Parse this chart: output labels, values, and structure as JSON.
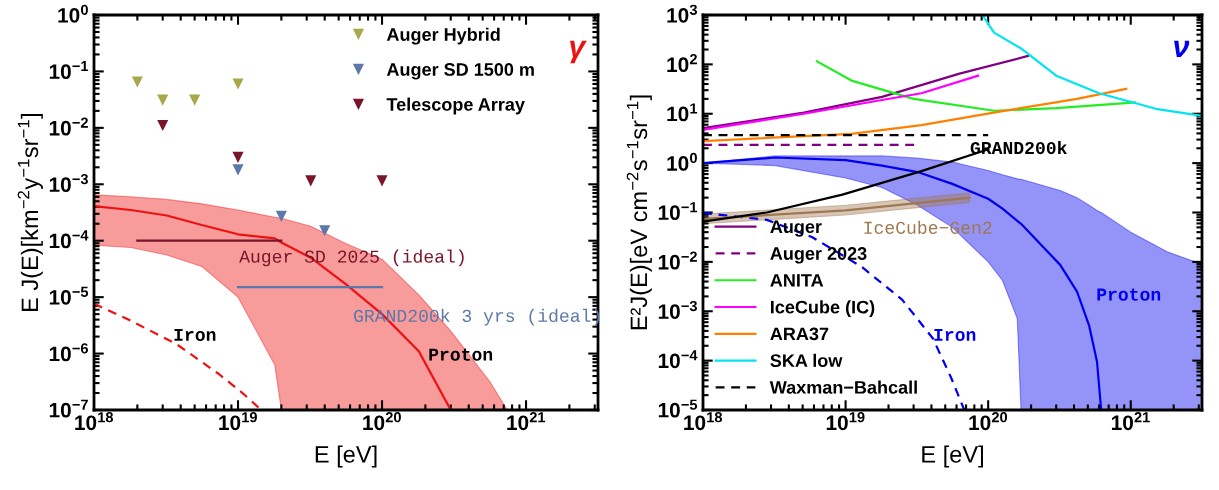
{
  "chart_data": [
    {
      "type": "line",
      "xlabel": "E [eV]",
      "ylabel": "E J(E)[km$^{−2}$y$^{−1}$sr$^{−1}$]",
      "log": "xy",
      "legend": "top right",
      "grid": false,
      "xlim": [
        1e+18,
        3.16e+21
      ],
      "xticks": [
        {
          "value": 1e+18,
          "label": "10$^{18}$"
        },
        {
          "value": 1e+19,
          "label": "10$^{19}$"
        },
        {
          "value": 1e+20,
          "label": "10$^{20}$"
        },
        {
          "value": 1e+21,
          "label": "10$^{21}$"
        }
      ],
      "ylim": [
        1e-07,
        1
      ],
      "yticks": [
        {
          "value": 1e-07,
          "label": "10$^{−7}$"
        },
        {
          "value": 1e-06,
          "label": "10$^{−6}$"
        },
        {
          "value": 1e-05,
          "label": "10$^{−5}$"
        },
        {
          "value": 0.0001,
          "label": "10$^{−4}$"
        },
        {
          "value": 0.001,
          "label": "10$^{−3}$"
        },
        {
          "value": 0.01,
          "label": "10$^{−2}$"
        },
        {
          "value": 0.1,
          "label": "10$^{−1}$"
        },
        {
          "value": 1,
          "label": "10$^{0}$"
        }
      ],
      "series": [
        {
          "name": "Proton",
          "color": "#ee1111",
          "x": [
            1e+18,
            1.8e+18,
            3.2e+18,
            5.6e+18,
            1e+19,
            1.8e+19,
            2e+19,
            3.2e+19,
            5.6e+19,
            1e+20,
            1.8e+20,
            3e+20,
            5.6e+20,
            7.4e+20
          ],
          "values": [
            0.00041,
            0.00035,
            0.00028,
            0.00019,
            0.00013,
            0.00011,
            9.3e-05,
            5e-05,
            1.7e-05,
            5e-06,
            1.1e-06,
            1e-07,
            null,
            null
          ],
          "upper": [
            0.00065,
            0.0006,
            0.00054,
            0.00045,
            0.00035,
            0.00026,
            0.00025,
            0.00018,
            8.9e-05,
            4.7e-05,
            1.1e-05,
            2.5e-06,
            3.2e-07,
            1e-07
          ],
          "lower": [
            8.3e-05,
            7.6e-05,
            5.6e-05,
            3.5e-05,
            1e-05,
            6.3e-07,
            1e-07,
            1e-07,
            1e-07,
            1e-07,
            1e-07,
            1e-07,
            1e-07,
            1e-07
          ]
        },
        {
          "name": "Iron",
          "color": "#ee1111",
          "line_style": "dashed",
          "x": [
            1e+18,
            1.7e+18,
            3.7e+18,
            7.4e+18,
            1.1e+19,
            1.45e+19
          ],
          "values": [
            7.6e-06,
            4.1e-06,
            1.5e-06,
            4.3e-07,
            1.9e-07,
            1e-07
          ]
        },
        {
          "name": "Auger SD 2025 (ideal)",
          "color": "#7a1428",
          "x": [
            2e+18,
            2e+19
          ],
          "values": [
            0.0001,
            0.0001
          ]
        },
        {
          "name": "GRAND200k 3 yrs (ideal)",
          "color": "#5a78a8",
          "x": [
            1e+19,
            1e+20
          ],
          "values": [
            1.5e-05,
            1.5e-05
          ]
        },
        {
          "type": "scatter",
          "name": "Auger Hybrid",
          "color": "#a8a84a",
          "x": [
            2e+18,
            3e+18,
            5e+18,
            1e+19
          ],
          "values": [
            0.065,
            0.031,
            0.031,
            0.06
          ]
        },
        {
          "type": "scatter",
          "name": "Auger SD 1500 m",
          "color": "#5a78a8",
          "x": [
            1e+19,
            2e+19,
            4e+19
          ],
          "values": [
            0.0018,
            0.00027,
            0.00015
          ]
        },
        {
          "type": "scatter",
          "name": "Telescope Array",
          "color": "#7a1428",
          "x": [
            3e+18,
            1e+19,
            3.2e+19,
            1e+20
          ],
          "values": [
            0.011,
            0.003,
            0.00115,
            0.00115
          ]
        }
      ],
      "annotations": [
        "γ"
      ]
    },
    {
      "type": "line",
      "xlabel": "E [eV]",
      "ylabel": "E²J(E)[eV cm$^{−2}$s$^{−1}$sr$^{−1}$]",
      "log": "xy",
      "legend": "bottom left",
      "grid": false,
      "xlim": [
        1e+18,
        3.16e+21
      ],
      "xticks": [
        {
          "value": 1e+18,
          "label": "10$^{18}$"
        },
        {
          "value": 1e+19,
          "label": "10$^{19}$"
        },
        {
          "value": 1e+20,
          "label": "10$^{20}$"
        },
        {
          "value": 1e+21,
          "label": "10$^{21}$"
        }
      ],
      "ylim": [
        1e-05,
        1000
      ],
      "yticks": [
        {
          "value": 1e-05,
          "label": "10$^{−5}$"
        },
        {
          "value": 0.0001,
          "label": "10$^{−4}$"
        },
        {
          "value": 0.001,
          "label": "10$^{−3}$"
        },
        {
          "value": 0.01,
          "label": "10$^{−2}$"
        },
        {
          "value": 0.1,
          "label": "10$^{−1}$"
        },
        {
          "value": 1,
          "label": "10$^{0}$"
        },
        {
          "value": 10,
          "label": "10$^{1}$"
        },
        {
          "value": 100,
          "label": "10$^{2}$"
        },
        {
          "value": 1000,
          "label": "10$^{3}$"
        }
      ],
      "series": [
        {
          "name": "Proton",
          "color": "#0000ee",
          "x": [
            1e+18,
            3.2e+18,
            1e+19,
            1.8e+19,
            3.2e+19,
            5.6e+19,
            1e+20,
            1.26e+20,
            1.6e+20,
            1.7e+20,
            3.2e+20,
            4.2e+20,
            5.1e+20,
            5.8e+20,
            6.2e+20,
            1e+21,
            1.8e+21,
            3.16e+21
          ],
          "values": [
            1,
            1.3,
            1.15,
            0.89,
            0.66,
            0.38,
            0.19,
            0.12,
            0.068,
            0.059,
            0.0087,
            0.0025,
            0.00052,
            9.5e-05,
            1e-05,
            null,
            null,
            null
          ],
          "upper": [
            1,
            1.4,
            1.4,
            1.4,
            1.26,
            1.05,
            0.71,
            0.58,
            0.48,
            0.47,
            0.28,
            0.2,
            0.14,
            0.11,
            0.1,
            0.04,
            0.016,
            0.0089
          ],
          "lower": [
            1,
            0.89,
            0.5,
            0.32,
            0.14,
            0.05,
            0.01,
            0.0042,
            0.00071,
            1e-05,
            1e-05,
            1e-05,
            1e-05,
            1e-05,
            1e-05,
            1e-05,
            1e-05,
            1e-05
          ]
        },
        {
          "name": "Iron",
          "color": "#0000ee",
          "line_style": "dashed",
          "x": [
            1e+18,
            2.8e+18,
            5.8e+18,
            1.3e+19,
            2.5e+19,
            4.1e+19,
            5.5e+19,
            6.8e+19
          ],
          "values": [
            0.098,
            0.071,
            0.032,
            0.0079,
            0.0017,
            0.00028,
            4.5e-05,
            1e-05
          ]
        },
        {
          "name": "IceCube−Gen2",
          "color": "#a07850",
          "x": [
            1e+18,
            1e+19,
            7.4e+19
          ],
          "values": [
            0.074,
            0.11,
            0.2
          ],
          "lower": [
            0.059,
            0.089,
            0.16
          ],
          "upper": [
            0.093,
            0.14,
            0.25
          ]
        },
        {
          "name": "GRAND200k",
          "color": "#000000",
          "x": [
            1e+18,
            2.8e+18,
            9.5e+18,
            3.4e+19,
            1e+20
          ],
          "values": [
            0.065,
            0.1,
            0.23,
            0.69,
            1.9
          ]
        },
        {
          "name": "Auger",
          "color": "#800080",
          "x": [
            1e+18,
            5.1e+18,
            1.8e+19,
            6.3e+19,
            1.9e+20
          ],
          "values": [
            5.1,
            10.5,
            22,
            65,
            148
          ]
        },
        {
          "name": "Auger 2023",
          "color": "#800080",
          "line_style": "dashed",
          "x": [
            1e+18,
            3.1e+19
          ],
          "values": [
            2.35,
            2.35
          ]
        },
        {
          "name": "ANITA",
          "color": "#22ee22",
          "x": [
            6.3e+18,
            1.1e+19,
            3e+19,
            1.1e+20,
            3e+20,
            1.07e+21
          ],
          "values": [
            115,
            47,
            20,
            11.5,
            13,
            17
          ]
        },
        {
          "name": "IceCube (IC)",
          "color": "#ff00ff",
          "x": [
            1e+18,
            5.1e+18,
            1.8e+19,
            3.4e+19,
            8.5e+19
          ],
          "values": [
            4.7,
            10,
            19,
            26,
            59
          ]
        },
        {
          "name": "ARA37",
          "color": "#ff8000",
          "x": [
            1e+18,
            1.1e+19,
            3.4e+19,
            1.2e+20,
            4.2e+20,
            9.3e+20
          ],
          "values": [
            2.8,
            3.9,
            5.9,
            11,
            20,
            32
          ]
        },
        {
          "name": "SKA low",
          "color": "#00e5ee",
          "x": [
            9.1e+19,
            1.1e+20,
            1.7e+20,
            3e+20,
            6e+20,
            1.5e+21,
            3.16e+21
          ],
          "values": [
            1000,
            440,
            210,
            59,
            26,
            12.6,
            9.1
          ]
        },
        {
          "name": "Waxman−Bahcall",
          "color": "#000000",
          "line_style": "dashed",
          "x": [
            1e+18,
            1e+20
          ],
          "values": [
            3.7,
            3.7
          ]
        }
      ],
      "annotations": [
        "ν"
      ]
    }
  ]
}
